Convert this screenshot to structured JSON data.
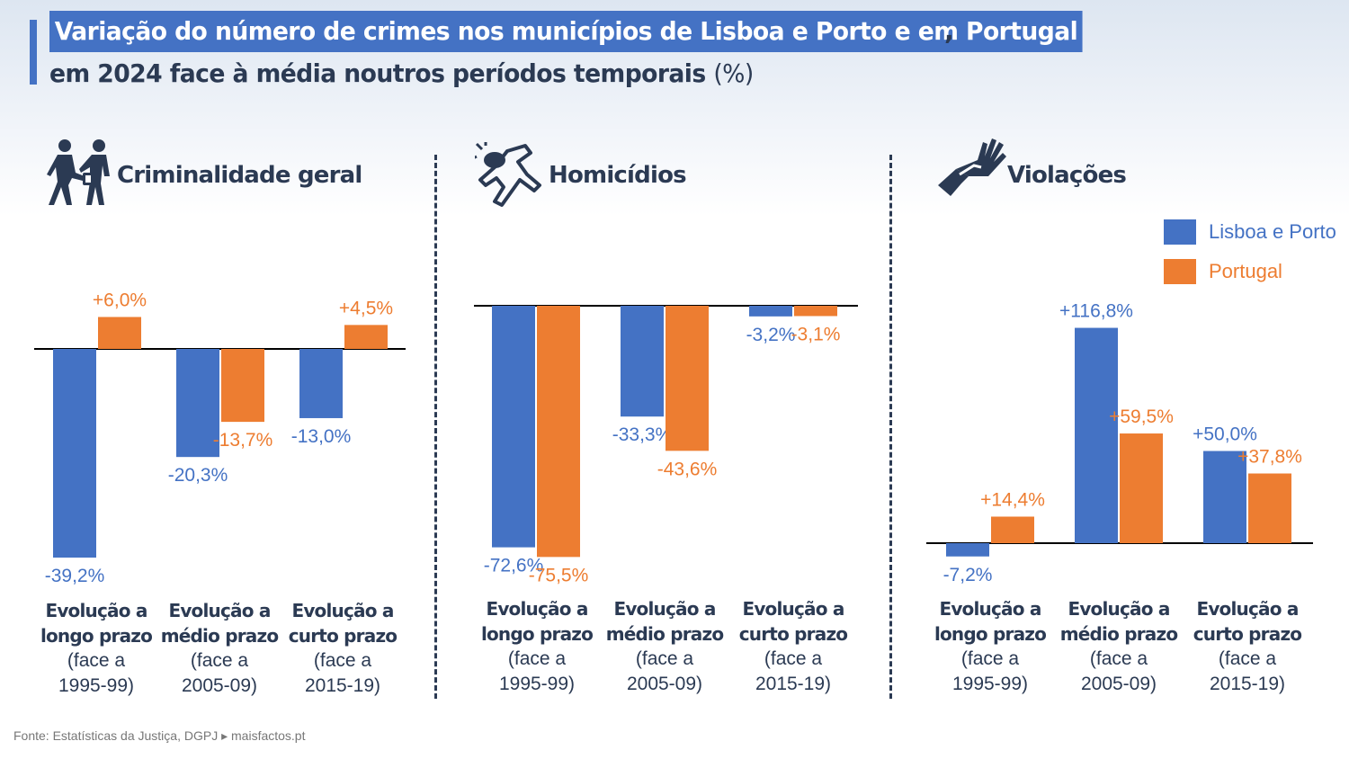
{
  "title": {
    "line1": "Variação do número de crimes nos municípios de Lisboa e Porto e em Portugal",
    "comma": ",",
    "line2_main": "em 2024 face à média noutros períodos temporais",
    "line2_unit": "(%)"
  },
  "legend": {
    "items": [
      {
        "label": "Lisboa e Porto",
        "color": "#4472c4"
      },
      {
        "label": "Portugal",
        "color": "#ed7d31"
      }
    ]
  },
  "icons": [
    "criminal-icon",
    "homicide-icon",
    "violence-icon"
  ],
  "categories": [
    {
      "bold1": "Evolução a",
      "bold2": "longo prazo",
      "normal1": "(face a",
      "normal2": "1995-99)"
    },
    {
      "bold1": "Evolução a",
      "bold2": "médio prazo",
      "normal1": "(face a",
      "normal2": "2005-09)"
    },
    {
      "bold1": "Evolução a",
      "bold2": "curto prazo",
      "normal1": "(face a",
      "normal2": "2015-19)"
    }
  ],
  "chart_data": [
    {
      "type": "bar",
      "title": "Criminalidade geral",
      "categories": [
        "Evolução a longo prazo (face a 1995-99)",
        "Evolução a médio prazo (face a 2005-09)",
        "Evolução a curto prazo (face a 2015-19)"
      ],
      "series": [
        {
          "name": "Lisboa e Porto",
          "values": [
            -39.2,
            -20.3,
            -13.0
          ],
          "labels": [
            "-39,2%",
            "-20,3%",
            "-13,0%"
          ]
        },
        {
          "name": "Portugal",
          "values": [
            6.0,
            -13.7,
            4.5
          ],
          "labels": [
            "+6,0%",
            "-13,7%",
            "+4,5%"
          ]
        }
      ]
    },
    {
      "type": "bar",
      "title": "Homicídios",
      "categories": [
        "Evolução a longo prazo (face a 1995-99)",
        "Evolução a médio prazo (face a 2005-09)",
        "Evolução a curto prazo (face a 2015-19)"
      ],
      "series": [
        {
          "name": "Lisboa e Porto",
          "values": [
            -72.6,
            -33.3,
            -3.2
          ],
          "labels": [
            "-72,6%",
            "-33,3%",
            "-3,2%"
          ]
        },
        {
          "name": "Portugal",
          "values": [
            -75.5,
            -43.6,
            -3.1
          ],
          "labels": [
            "-75,5%",
            "-43,6%",
            "-3,1%"
          ]
        }
      ]
    },
    {
      "type": "bar",
      "title": "Violações",
      "categories": [
        "Evolução a longo prazo (face a 1995-99)",
        "Evolução a médio prazo (face a 2005-09)",
        "Evolução a curto prazo (face a 2015-19)"
      ],
      "series": [
        {
          "name": "Lisboa e Porto",
          "values": [
            -7.2,
            116.8,
            50.0
          ],
          "labels": [
            "-7,2%",
            "+116,8%",
            "+50,0%"
          ]
        },
        {
          "name": "Portugal",
          "values": [
            14.4,
            59.5,
            37.8
          ],
          "labels": [
            "+14,4%",
            "+59,5%",
            "+37,8%"
          ]
        }
      ]
    }
  ],
  "footer": "Fonte: Estatísticas da Justiça, DGPJ ▸ maisfactos.pt"
}
